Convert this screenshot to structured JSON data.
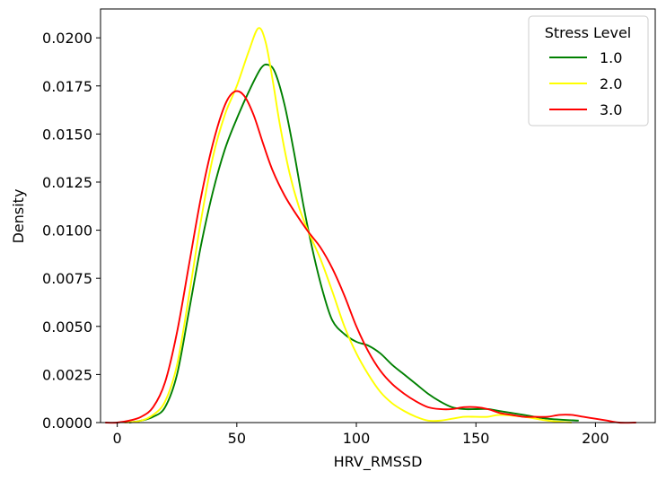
{
  "chart_data": {
    "type": "line",
    "title": "",
    "xlabel": "HRV_RMSSD",
    "ylabel": "Density",
    "xlim": [
      -7,
      225
    ],
    "ylim": [
      0,
      0.0215
    ],
    "xticks": [
      0,
      50,
      100,
      150,
      200
    ],
    "xtick_labels": [
      "0",
      "50",
      "100",
      "150",
      "200"
    ],
    "yticks": [
      0,
      0.0025,
      0.005,
      0.0075,
      0.01,
      0.0125,
      0.015,
      0.0175,
      0.02
    ],
    "ytick_labels": [
      "0.0000",
      "0.0025",
      "0.0050",
      "0.0075",
      "0.0100",
      "0.0125",
      "0.0150",
      "0.0175",
      "0.0200"
    ],
    "grid": false,
    "legend": {
      "title": "Stress Level",
      "placement": "top-right"
    },
    "series": [
      {
        "name": "1.0",
        "color": "#008000",
        "points": [
          [
            5,
            0
          ],
          [
            10,
            0.0001
          ],
          [
            15,
            0.0003
          ],
          [
            20,
            0.0008
          ],
          [
            25,
            0.0025
          ],
          [
            30,
            0.0058
          ],
          [
            35,
            0.0092
          ],
          [
            40,
            0.012
          ],
          [
            45,
            0.0142
          ],
          [
            50,
            0.0158
          ],
          [
            55,
            0.0172
          ],
          [
            60,
            0.0184
          ],
          [
            63,
            0.0186
          ],
          [
            66,
            0.0182
          ],
          [
            70,
            0.0165
          ],
          [
            74,
            0.014
          ],
          [
            78,
            0.0112
          ],
          [
            82,
            0.0088
          ],
          [
            86,
            0.0068
          ],
          [
            90,
            0.0053
          ],
          [
            95,
            0.0046
          ],
          [
            100,
            0.0042
          ],
          [
            105,
            0.004
          ],
          [
            110,
            0.0036
          ],
          [
            115,
            0.003
          ],
          [
            120,
            0.0025
          ],
          [
            125,
            0.002
          ],
          [
            130,
            0.0015
          ],
          [
            135,
            0.0011
          ],
          [
            140,
            0.0008
          ],
          [
            145,
            0.0007
          ],
          [
            150,
            0.0007
          ],
          [
            155,
            0.0007
          ],
          [
            160,
            0.0006
          ],
          [
            170,
            0.0004
          ],
          [
            180,
            0.0002
          ],
          [
            193,
            0.0001
          ]
        ]
      },
      {
        "name": "2.0",
        "color": "#ffff00",
        "points": [
          [
            3,
            0
          ],
          [
            10,
            0.0001
          ],
          [
            15,
            0.0004
          ],
          [
            20,
            0.0011
          ],
          [
            25,
            0.003
          ],
          [
            30,
            0.0066
          ],
          [
            35,
            0.0105
          ],
          [
            40,
            0.0138
          ],
          [
            45,
            0.016
          ],
          [
            50,
            0.0175
          ],
          [
            55,
            0.0193
          ],
          [
            59,
            0.0205
          ],
          [
            62,
            0.0198
          ],
          [
            65,
            0.0178
          ],
          [
            68,
            0.0155
          ],
          [
            72,
            0.013
          ],
          [
            76,
            0.0112
          ],
          [
            80,
            0.0099
          ],
          [
            85,
            0.0085
          ],
          [
            90,
            0.0068
          ],
          [
            95,
            0.005
          ],
          [
            100,
            0.0036
          ],
          [
            105,
            0.0025
          ],
          [
            110,
            0.0016
          ],
          [
            115,
            0.001
          ],
          [
            120,
            0.0006
          ],
          [
            125,
            0.0003
          ],
          [
            130,
            0.0001
          ],
          [
            135,
            0.0001
          ],
          [
            140,
            0.0002
          ],
          [
            145,
            0.0003
          ],
          [
            150,
            0.0003
          ],
          [
            155,
            0.0003
          ],
          [
            160,
            0.0004
          ],
          [
            170,
            0.0003
          ],
          [
            180,
            0.0001
          ],
          [
            190,
            0
          ]
        ]
      },
      {
        "name": "3.0",
        "color": "#ff0000",
        "points": [
          [
            -5,
            0
          ],
          [
            0,
            0
          ],
          [
            5,
            0.0001
          ],
          [
            10,
            0.0003
          ],
          [
            15,
            0.0008
          ],
          [
            20,
            0.0021
          ],
          [
            25,
            0.0047
          ],
          [
            30,
            0.0082
          ],
          [
            35,
            0.0117
          ],
          [
            40,
            0.0145
          ],
          [
            45,
            0.0165
          ],
          [
            49,
            0.0172
          ],
          [
            53,
            0.017
          ],
          [
            57,
            0.016
          ],
          [
            61,
            0.0145
          ],
          [
            65,
            0.0131
          ],
          [
            70,
            0.0118
          ],
          [
            75,
            0.0108
          ],
          [
            80,
            0.0099
          ],
          [
            85,
            0.0091
          ],
          [
            90,
            0.008
          ],
          [
            95,
            0.0066
          ],
          [
            100,
            0.005
          ],
          [
            105,
            0.0037
          ],
          [
            110,
            0.0027
          ],
          [
            115,
            0.002
          ],
          [
            120,
            0.0015
          ],
          [
            125,
            0.0011
          ],
          [
            130,
            0.0008
          ],
          [
            135,
            0.0007
          ],
          [
            140,
            0.0007
          ],
          [
            145,
            0.0008
          ],
          [
            150,
            0.0008
          ],
          [
            155,
            0.0007
          ],
          [
            160,
            0.0005
          ],
          [
            165,
            0.0004
          ],
          [
            170,
            0.0003
          ],
          [
            175,
            0.0003
          ],
          [
            180,
            0.0003
          ],
          [
            185,
            0.0004
          ],
          [
            190,
            0.0004
          ],
          [
            195,
            0.0003
          ],
          [
            200,
            0.0002
          ],
          [
            205,
            0.0001
          ],
          [
            210,
            0
          ],
          [
            217,
            0
          ]
        ]
      }
    ]
  }
}
